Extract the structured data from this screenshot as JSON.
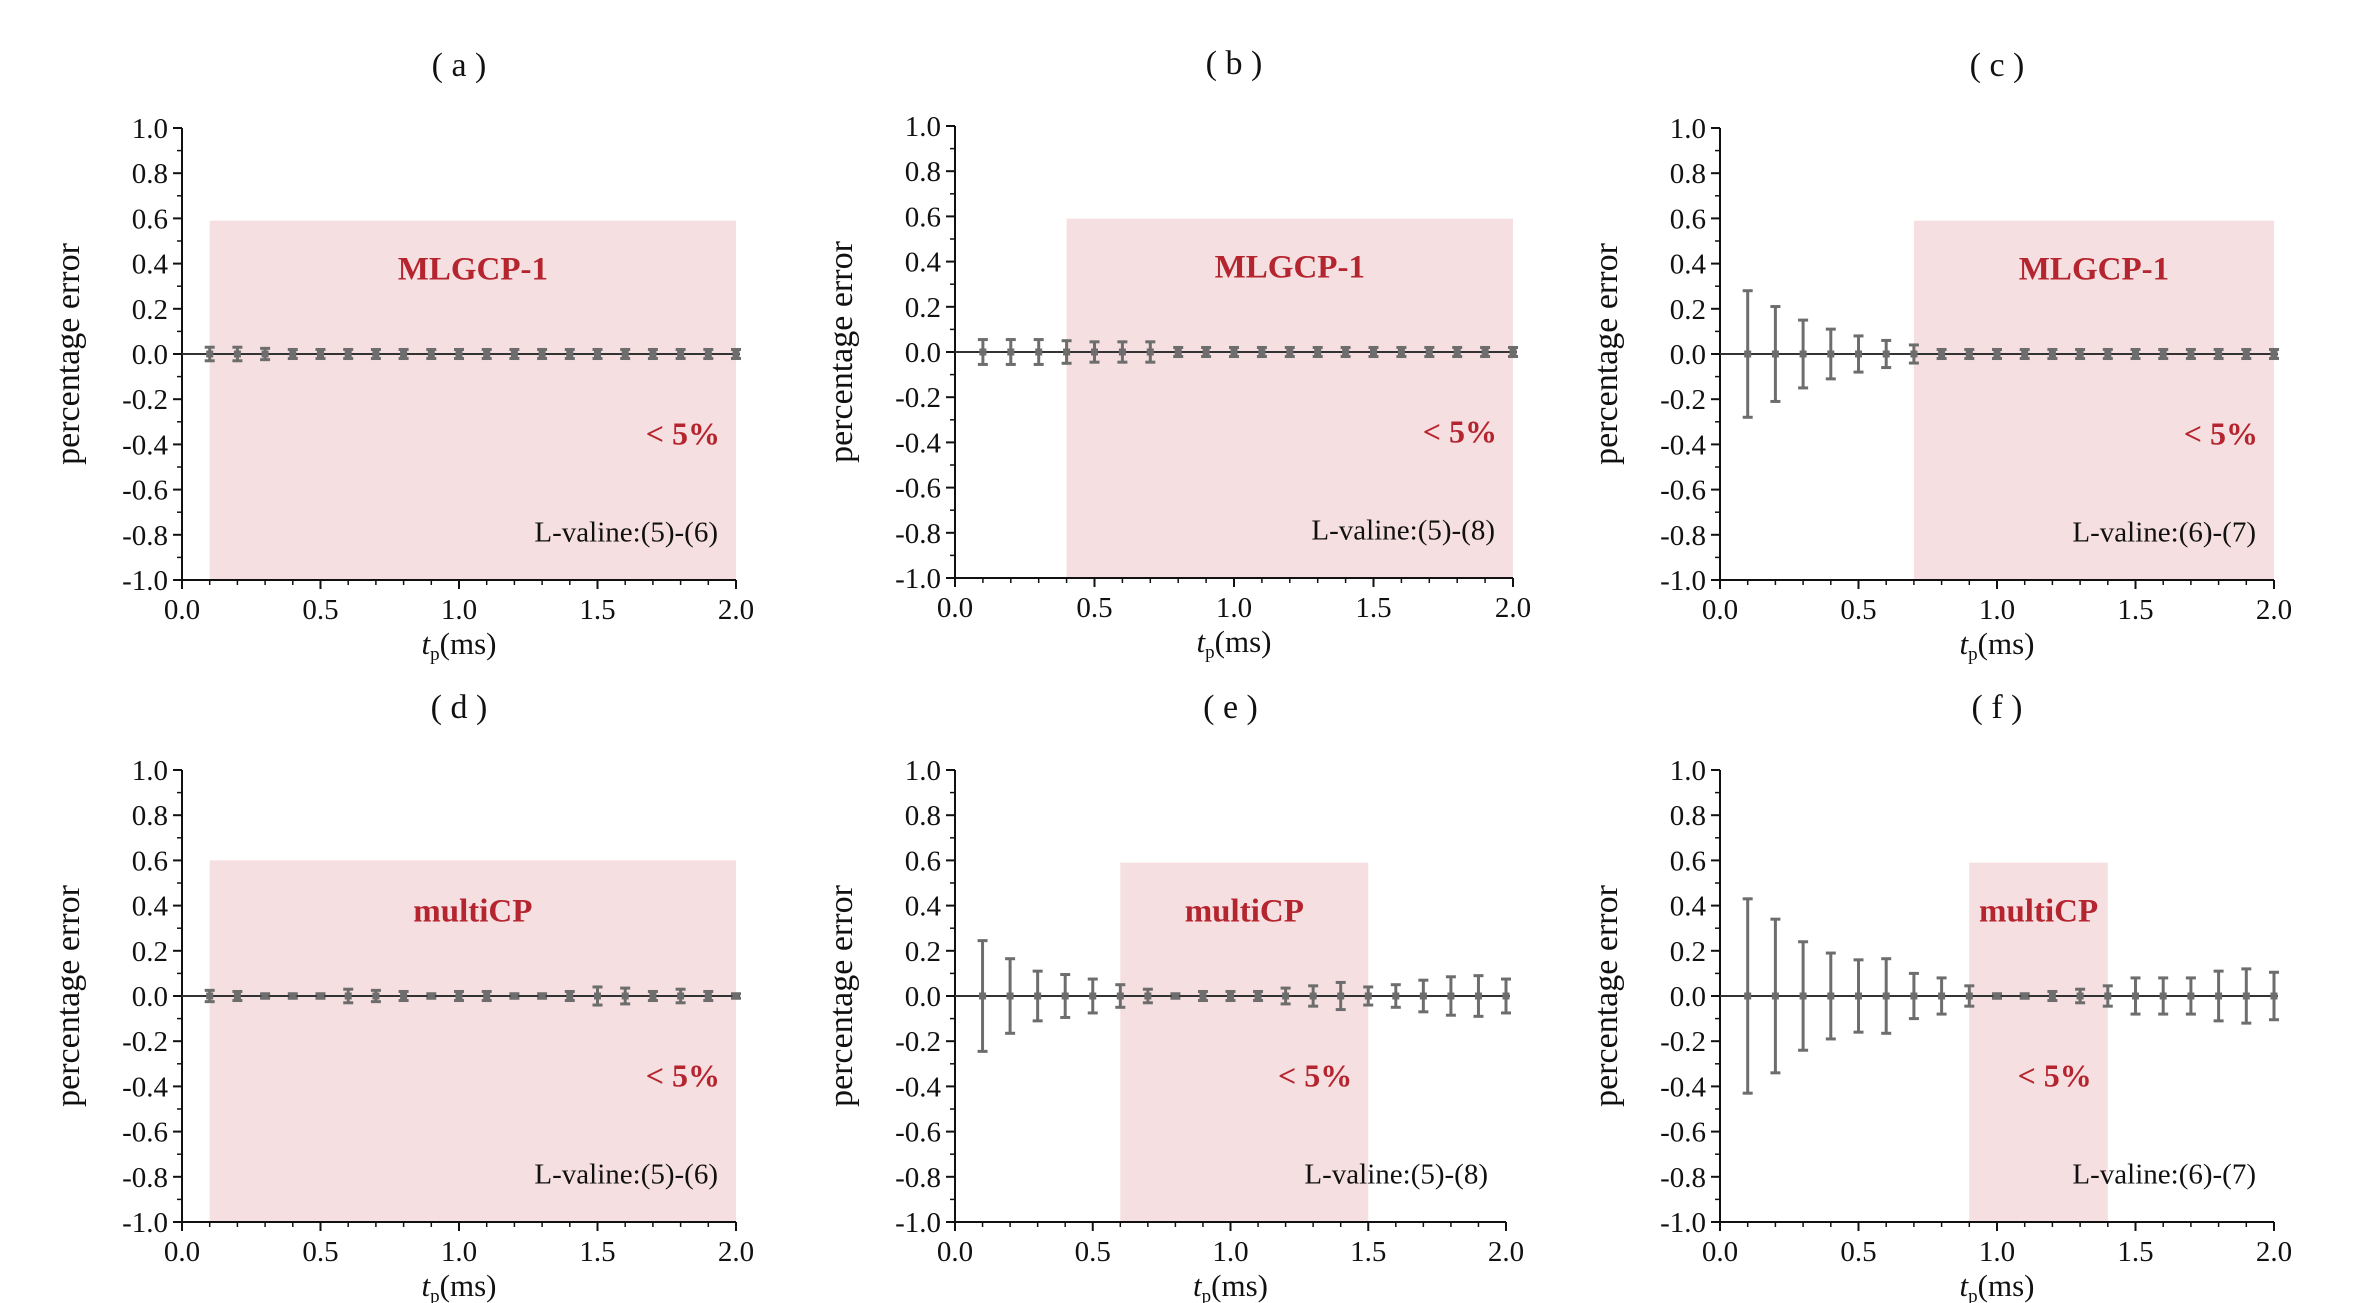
{
  "colors": {
    "shade": "#f6dfe0",
    "accent": "#b5252f",
    "errorbar": "#6d6d6d",
    "axis": "#111111"
  },
  "chart_data": [
    {
      "type": "scatter",
      "panel_label": "( a )",
      "method": "MLGCP-1",
      "threshold_note": "< 5%",
      "sample": "L-valine:(5)-(6)",
      "xlabel_main": "t",
      "xlabel_sub": "p",
      "xlabel_unit": "(ms)",
      "ylabel": "percentage error",
      "xlim": [
        0,
        2.0
      ],
      "ylim": [
        -1.0,
        1.0
      ],
      "xticks": [
        "0.0",
        "0.5",
        "1.0",
        "1.5",
        "2.0"
      ],
      "yticks": [
        "1.0",
        "0.8",
        "0.6",
        "0.4",
        "0.2",
        "0.0",
        "-0.2",
        "-0.4",
        "-0.6",
        "-0.8",
        "-1.0"
      ],
      "shaded_region": {
        "x": [
          0.1,
          2.0
        ],
        "y": [
          -1.0,
          0.59
        ]
      },
      "x": [
        0.1,
        0.2,
        0.3,
        0.4,
        0.5,
        0.6,
        0.7,
        0.8,
        0.9,
        1.0,
        1.1,
        1.2,
        1.3,
        1.4,
        1.5,
        1.6,
        1.7,
        1.8,
        1.9,
        2.0
      ],
      "y": [
        0,
        0,
        0,
        0,
        0,
        0,
        0,
        0,
        0,
        0,
        0,
        0,
        0,
        0,
        0,
        0,
        0,
        0,
        0,
        0
      ],
      "error": [
        0.03,
        0.03,
        0.025,
        0.02,
        0.02,
        0.02,
        0.02,
        0.02,
        0.02,
        0.02,
        0.02,
        0.02,
        0.02,
        0.02,
        0.02,
        0.02,
        0.02,
        0.02,
        0.02,
        0.02
      ]
    },
    {
      "type": "scatter",
      "panel_label": "( b )",
      "method": "MLGCP-1",
      "threshold_note": "< 5%",
      "sample": "L-valine:(5)-(8)",
      "xlabel_main": "t",
      "xlabel_sub": "p",
      "xlabel_unit": "(ms)",
      "ylabel": "percentage error",
      "xlim": [
        0,
        2.0
      ],
      "ylim": [
        -1.0,
        1.0
      ],
      "xticks": [
        "0.0",
        "0.5",
        "1.0",
        "1.5",
        "2.0"
      ],
      "yticks": [
        "1.0",
        "0.8",
        "0.6",
        "0.4",
        "0.2",
        "0.0",
        "-0.2",
        "-0.4",
        "-0.6",
        "-0.8",
        "-1.0"
      ],
      "shaded_region": {
        "x": [
          0.4,
          2.0
        ],
        "y": [
          -1.0,
          0.59
        ]
      },
      "x": [
        0.1,
        0.2,
        0.3,
        0.4,
        0.5,
        0.6,
        0.7,
        0.8,
        0.9,
        1.0,
        1.1,
        1.2,
        1.3,
        1.4,
        1.5,
        1.6,
        1.7,
        1.8,
        1.9,
        2.0
      ],
      "y": [
        0,
        0,
        0,
        0,
        0,
        0,
        0,
        0,
        0,
        0,
        0,
        0,
        0,
        0,
        0,
        0,
        0,
        0,
        0,
        0
      ],
      "error": [
        0.055,
        0.055,
        0.055,
        0.05,
        0.045,
        0.045,
        0.045,
        0.02,
        0.02,
        0.02,
        0.02,
        0.02,
        0.02,
        0.02,
        0.02,
        0.02,
        0.02,
        0.02,
        0.02,
        0.02
      ]
    },
    {
      "type": "scatter",
      "panel_label": "( c )",
      "method": "MLGCP-1",
      "threshold_note": "< 5%",
      "sample": "L-valine:(6)-(7)",
      "xlabel_main": "t",
      "xlabel_sub": "p",
      "xlabel_unit": "(ms)",
      "ylabel": "percentage error",
      "xlim": [
        0,
        2.0
      ],
      "ylim": [
        -1.0,
        1.0
      ],
      "xticks": [
        "0.0",
        "0.5",
        "1.0",
        "1.5",
        "2.0"
      ],
      "yticks": [
        "1.0",
        "0.8",
        "0.6",
        "0.4",
        "0.2",
        "0.0",
        "-0.2",
        "-0.4",
        "-0.6",
        "-0.8",
        "-1.0"
      ],
      "shaded_region": {
        "x": [
          0.7,
          2.0
        ],
        "y": [
          -1.0,
          0.59
        ]
      },
      "x": [
        0.1,
        0.2,
        0.3,
        0.4,
        0.5,
        0.6,
        0.7,
        0.8,
        0.9,
        1.0,
        1.1,
        1.2,
        1.3,
        1.4,
        1.5,
        1.6,
        1.7,
        1.8,
        1.9,
        2.0
      ],
      "y": [
        0,
        0,
        0,
        0,
        0,
        0,
        0,
        0,
        0,
        0,
        0,
        0,
        0,
        0,
        0,
        0,
        0,
        0,
        0,
        0
      ],
      "error": [
        0.28,
        0.21,
        0.15,
        0.11,
        0.08,
        0.06,
        0.04,
        0.02,
        0.02,
        0.02,
        0.02,
        0.02,
        0.02,
        0.02,
        0.02,
        0.02,
        0.02,
        0.02,
        0.02,
        0.02
      ]
    },
    {
      "type": "scatter",
      "panel_label": "( d )",
      "method": "multiCP",
      "threshold_note": "< 5%",
      "sample": "L-valine:(5)-(6)",
      "xlabel_main": "t",
      "xlabel_sub": "p",
      "xlabel_unit": "(ms)",
      "ylabel": "percentage error",
      "xlim": [
        0,
        2.0
      ],
      "ylim": [
        -1.0,
        1.0
      ],
      "xticks": [
        "0.0",
        "0.5",
        "1.0",
        "1.5",
        "2.0"
      ],
      "yticks": [
        "1.0",
        "0.8",
        "0.6",
        "0.4",
        "0.2",
        "0.0",
        "-0.2",
        "-0.4",
        "-0.6",
        "-0.8",
        "-1.0"
      ],
      "shaded_region": {
        "x": [
          0.1,
          2.0
        ],
        "y": [
          -1.0,
          0.6
        ]
      },
      "x": [
        0.1,
        0.2,
        0.3,
        0.4,
        0.5,
        0.6,
        0.7,
        0.8,
        0.9,
        1.0,
        1.1,
        1.2,
        1.3,
        1.4,
        1.5,
        1.6,
        1.7,
        1.8,
        1.9,
        2.0
      ],
      "y": [
        0,
        0,
        0,
        0,
        0,
        0,
        0,
        0,
        0,
        0,
        0,
        0,
        0,
        0,
        0,
        0,
        0,
        0,
        0,
        0
      ],
      "error": [
        0.025,
        0.02,
        0.01,
        0.01,
        0.01,
        0.03,
        0.025,
        0.02,
        0.01,
        0.02,
        0.02,
        0.01,
        0.01,
        0.02,
        0.04,
        0.035,
        0.02,
        0.03,
        0.02,
        0.01
      ]
    },
    {
      "type": "scatter",
      "panel_label": "( e )",
      "method": "multiCP",
      "threshold_note": "< 5%",
      "sample": "L-valine:(5)-(8)",
      "xlabel_main": "t",
      "xlabel_sub": "p",
      "xlabel_unit": "(ms)",
      "ylabel": "percentage error",
      "xlim": [
        0,
        2.0
      ],
      "ylim": [
        -1.0,
        1.0
      ],
      "xticks": [
        "0.0",
        "0.5",
        "1.0",
        "1.5",
        "2.0"
      ],
      "yticks": [
        "1.0",
        "0.8",
        "0.6",
        "0.4",
        "0.2",
        "0.0",
        "-0.2",
        "-0.4",
        "-0.6",
        "-0.8",
        "-1.0"
      ],
      "shaded_region": {
        "x": [
          0.6,
          1.5
        ],
        "y": [
          -1.0,
          0.59
        ]
      },
      "x": [
        0.1,
        0.2,
        0.3,
        0.4,
        0.5,
        0.6,
        0.7,
        0.8,
        0.9,
        1.0,
        1.1,
        1.2,
        1.3,
        1.4,
        1.5,
        1.6,
        1.7,
        1.8,
        1.9,
        2.0
      ],
      "y": [
        0,
        0,
        0,
        0,
        0,
        0,
        0,
        0,
        0,
        0,
        0,
        0,
        0,
        0,
        0,
        0,
        0,
        0,
        0,
        0
      ],
      "error": [
        0.245,
        0.165,
        0.11,
        0.095,
        0.075,
        0.05,
        0.03,
        0.01,
        0.02,
        0.02,
        0.02,
        0.035,
        0.045,
        0.06,
        0.04,
        0.05,
        0.07,
        0.085,
        0.09,
        0.075
      ]
    },
    {
      "type": "scatter",
      "panel_label": "( f )",
      "method": "multiCP",
      "threshold_note": "< 5%",
      "sample": "L-valine:(6)-(7)",
      "xlabel_main": "t",
      "xlabel_sub": "p",
      "xlabel_unit": "(ms)",
      "ylabel": "percentage error",
      "xlim": [
        0,
        2.0
      ],
      "ylim": [
        -1.0,
        1.0
      ],
      "xticks": [
        "0.0",
        "0.5",
        "1.0",
        "1.5",
        "2.0"
      ],
      "yticks": [
        "1.0",
        "0.8",
        "0.6",
        "0.4",
        "0.2",
        "0.0",
        "-0.2",
        "-0.4",
        "-0.6",
        "-0.8",
        "-1.0"
      ],
      "shaded_region": {
        "x": [
          0.9,
          1.4
        ],
        "y": [
          -1.0,
          0.59
        ]
      },
      "x": [
        0.1,
        0.2,
        0.3,
        0.4,
        0.5,
        0.6,
        0.7,
        0.8,
        0.9,
        1.0,
        1.1,
        1.2,
        1.3,
        1.4,
        1.5,
        1.6,
        1.7,
        1.8,
        1.9,
        2.0
      ],
      "y": [
        0,
        0,
        0,
        0,
        0,
        0,
        0,
        0,
        0,
        0,
        0,
        0,
        0,
        0,
        0,
        0,
        0,
        0,
        0,
        0
      ],
      "error": [
        0.43,
        0.34,
        0.24,
        0.19,
        0.16,
        0.165,
        0.1,
        0.08,
        0.045,
        0.01,
        0.01,
        0.02,
        0.03,
        0.045,
        0.08,
        0.08,
        0.08,
        0.11,
        0.12,
        0.105
      ]
    }
  ]
}
